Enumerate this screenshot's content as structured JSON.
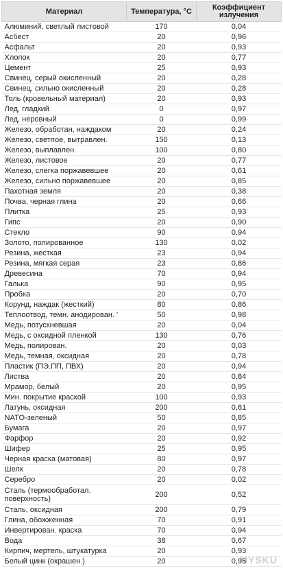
{
  "table": {
    "headers": {
      "material": "Материал",
      "temperature": "Температура, °С",
      "coefficient": "Коэффициент излучения"
    },
    "rows": [
      {
        "material": "Алюминий, светлый листовой",
        "temp": "170",
        "coef": "0,04"
      },
      {
        "material": "Асбест",
        "temp": "20",
        "coef": "0,96"
      },
      {
        "material": "Асфальт",
        "temp": "20",
        "coef": "0,93"
      },
      {
        "material": "Хлопок",
        "temp": "20",
        "coef": "0,77"
      },
      {
        "material": "Цемент",
        "temp": "25",
        "coef": "0,93"
      },
      {
        "material": "Свинец, серый окисленный",
        "temp": "20",
        "coef": "0,28"
      },
      {
        "material": "Свинец, сильно окисленный",
        "temp": "20",
        "coef": "0,28"
      },
      {
        "material": "Толь (кровельный материал)",
        "temp": "20",
        "coef": "0,93"
      },
      {
        "material": "Лед, гладкий",
        "temp": "0",
        "coef": "0,97"
      },
      {
        "material": "Лед, неровный",
        "temp": "0",
        "coef": "0,99"
      },
      {
        "material": "Железо, обработан, наждаком",
        "temp": "20",
        "coef": "0,24"
      },
      {
        "material": "Железо, светлое, вытравлен.",
        "temp": "150",
        "coef": "0,13"
      },
      {
        "material": "Железо, выплавлен.",
        "temp": "100",
        "coef": "0,80"
      },
      {
        "material": "Железо, листовое",
        "temp": "20",
        "coef": "0,77"
      },
      {
        "material": "Железо, слегка поржавевшее",
        "temp": "20",
        "coef": "0,61"
      },
      {
        "material": "Железо, сильно поржавевшее",
        "temp": "20",
        "coef": "0,85"
      },
      {
        "material": "Пахотная земля",
        "temp": "20",
        "coef": "0,38"
      },
      {
        "material": "Почва, черная глина",
        "temp": "20",
        "coef": "0,66"
      },
      {
        "material": "Плитка",
        "temp": "25",
        "coef": "0,93"
      },
      {
        "material": "Гипс",
        "temp": "20",
        "coef": "0,90"
      },
      {
        "material": "Стекло",
        "temp": "90",
        "coef": "0,94"
      },
      {
        "material": "Золото, полированное",
        "temp": "130",
        "coef": "0,02"
      },
      {
        "material": "Резина, жесткая",
        "temp": "23",
        "coef": "0,94"
      },
      {
        "material": "Резина, мягкая серая",
        "temp": "23",
        "coef": "0,86"
      },
      {
        "material": "Древесина",
        "temp": "70",
        "coef": "0,94"
      },
      {
        "material": "Галька",
        "temp": "90",
        "coef": "0,95"
      },
      {
        "material": "Пробка",
        "temp": "20",
        "coef": "0,70"
      },
      {
        "material": "Корунд, наждак (жесткий)",
        "temp": "80",
        "coef": "0,86"
      },
      {
        "material": "Теплоотвод, темн. анодирован. '",
        "temp": "50",
        "coef": "0,98"
      },
      {
        "material": "Медь, потускневшая",
        "temp": "20",
        "coef": "0,04"
      },
      {
        "material": "Медь, с оксидной пленкой",
        "temp": "130",
        "coef": "0,76"
      },
      {
        "material": "Медь, полирован.",
        "temp": "20",
        "coef": "0,03"
      },
      {
        "material": "Медь, темная, оксидная",
        "temp": "20",
        "coef": "0,78"
      },
      {
        "material": "Пластик (ПЭ.ПП, ПВХ)",
        "temp": "20",
        "coef": "0,94"
      },
      {
        "material": "Листва",
        "temp": "20",
        "coef": "0,84"
      },
      {
        "material": "Мрамор, белый",
        "temp": "20",
        "coef": "0,95"
      },
      {
        "material": "Мин. покрытие краской",
        "temp": "100",
        "coef": "0,93"
      },
      {
        "material": "Латунь, оксидная",
        "temp": "200",
        "coef": "0,61"
      },
      {
        "material": "NATO-зеленый",
        "temp": "50",
        "coef": "0,85"
      },
      {
        "material": "Бумага",
        "temp": "20",
        "coef": "0,97"
      },
      {
        "material": "Фарфор",
        "temp": "20",
        "coef": "0,92"
      },
      {
        "material": "Шифер",
        "temp": "25",
        "coef": "0,95"
      },
      {
        "material": "Черная краска (матовая)",
        "temp": "80",
        "coef": "0,97"
      },
      {
        "material": "Шелк",
        "temp": "20",
        "coef": "0,78"
      },
      {
        "material": "Серебро",
        "temp": "20",
        "coef": "0,02"
      },
      {
        "material": "Сталь (термообработал. поверхность)",
        "temp": "200",
        "coef": "0,52",
        "tall": true
      },
      {
        "material": "Сталь, оксидная",
        "temp": "200",
        "coef": "0,79"
      },
      {
        "material": "Глина, обожженная",
        "temp": "70",
        "coef": "0,91"
      },
      {
        "material": "Инвертирован. краска",
        "temp": "70",
        "coef": "0,94"
      },
      {
        "material": "Вода",
        "temp": "38",
        "coef": "0,67"
      },
      {
        "material": "Кирпич, мертель, штукатурка",
        "temp": "20",
        "coef": "0,93"
      },
      {
        "material": "Белый цинк (окрашен.)",
        "temp": "20",
        "coef": "0,95"
      }
    ]
  },
  "watermark": "MYSKU"
}
